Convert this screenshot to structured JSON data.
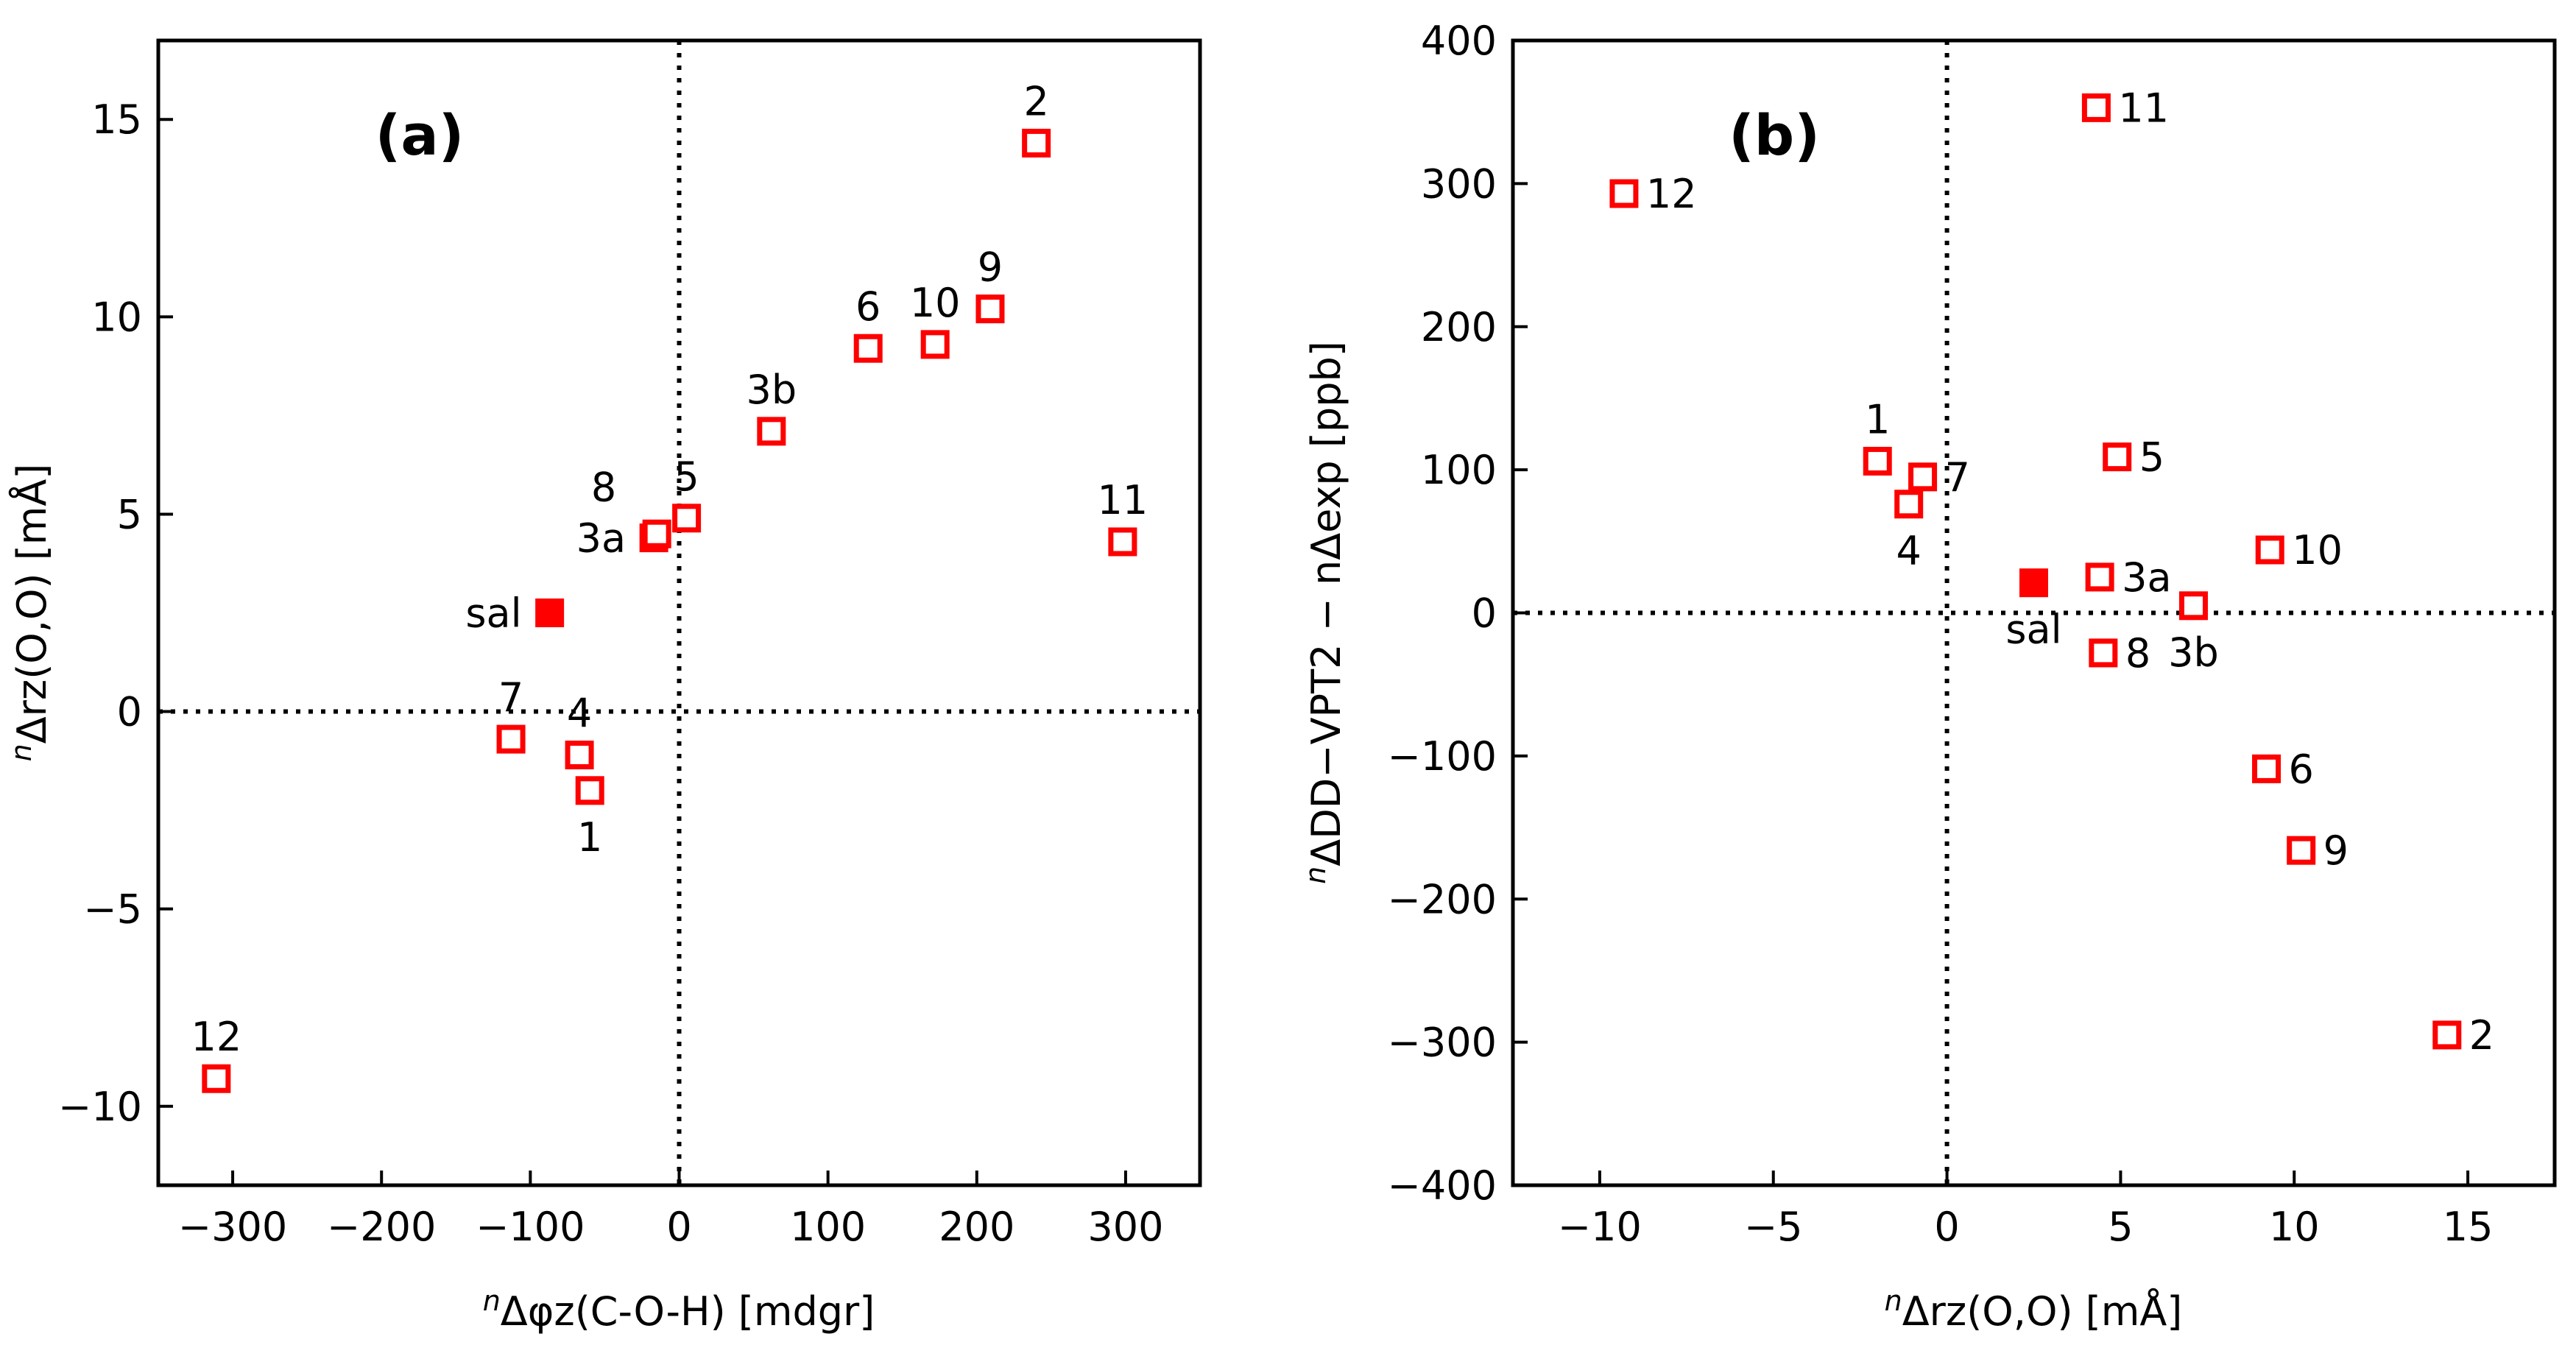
{
  "colors": {
    "marker": "#ff0000",
    "axis": "#000000",
    "background": "#ffffff"
  },
  "chart_data": [
    {
      "type": "scatter",
      "panel_label": "(a)",
      "xlabel": {
        "prefix": "n",
        "text": "Δφz(C-O-H) [mdgr]"
      },
      "ylabel": {
        "prefix": "n",
        "text": "Δrz(O,O) [mÅ]"
      },
      "xlim": [
        -350,
        350
      ],
      "ylim": [
        -12,
        17
      ],
      "xticks": [
        -300,
        -200,
        -100,
        0,
        100,
        200,
        300
      ],
      "xtick_labels": [
        "−300",
        "−200",
        "−100",
        "0",
        "100",
        "200",
        "300"
      ],
      "yticks": [
        -10,
        -5,
        0,
        5,
        10,
        15
      ],
      "ytick_labels": [
        "−10",
        "−5",
        "0",
        "5",
        "10",
        "15"
      ],
      "reference_lines": {
        "x": 0,
        "y": 0,
        "style": "dotted"
      },
      "points": [
        {
          "label": "1",
          "x": -60,
          "y": -2.0,
          "filled": false,
          "label_pos": "below"
        },
        {
          "label": "2",
          "x": 240,
          "y": 14.4,
          "filled": false,
          "label_pos": "above"
        },
        {
          "label": "3a",
          "x": -17,
          "y": 4.4,
          "filled": false,
          "label_pos": "left"
        },
        {
          "label": "3b",
          "x": 62,
          "y": 7.1,
          "filled": false,
          "label_pos": "above"
        },
        {
          "label": "4",
          "x": -67,
          "y": -1.1,
          "filled": false,
          "label_pos": "above"
        },
        {
          "label": "5",
          "x": 5,
          "y": 4.9,
          "filled": false,
          "label_pos": "above"
        },
        {
          "label": "6",
          "x": 127,
          "y": 9.2,
          "filled": false,
          "label_pos": "above"
        },
        {
          "label": "7",
          "x": -113,
          "y": -0.7,
          "filled": false,
          "label_pos": "above"
        },
        {
          "label": "8",
          "x": -15,
          "y": 4.5,
          "filled": false,
          "label_pos": "upper-left"
        },
        {
          "label": "9",
          "x": 209,
          "y": 10.2,
          "filled": false,
          "label_pos": "above"
        },
        {
          "label": "10",
          "x": 172,
          "y": 9.3,
          "filled": false,
          "label_pos": "above"
        },
        {
          "label": "11",
          "x": 298,
          "y": 4.3,
          "filled": false,
          "label_pos": "above"
        },
        {
          "label": "12",
          "x": -311,
          "y": -9.3,
          "filled": false,
          "label_pos": "above"
        },
        {
          "label": "sal",
          "x": -87,
          "y": 2.5,
          "filled": true,
          "label_pos": "left"
        }
      ]
    },
    {
      "type": "scatter",
      "panel_label": "(b)",
      "xlabel": {
        "prefix": "n",
        "text": "Δrz(O,O) [mÅ]"
      },
      "ylabel": {
        "prefix": "n",
        "text": "ΔDD−VPT2 − nΔexp [ppb]"
      },
      "xlim": [
        -12.5,
        17.5
      ],
      "ylim": [
        -400,
        400
      ],
      "xticks": [
        -10,
        -5,
        0,
        5,
        10,
        15
      ],
      "xtick_labels": [
        "−10",
        "−5",
        "0",
        "5",
        "10",
        "15"
      ],
      "yticks": [
        -400,
        -300,
        -200,
        -100,
        0,
        100,
        200,
        300,
        400
      ],
      "ytick_labels": [
        "−400",
        "−300",
        "−200",
        "−100",
        "0",
        "100",
        "200",
        "300",
        "400"
      ],
      "reference_lines": {
        "x": 0,
        "y": 0,
        "style": "dotted"
      },
      "points": [
        {
          "label": "1",
          "x": -2.0,
          "y": 106,
          "filled": false,
          "label_pos": "above"
        },
        {
          "label": "2",
          "x": 14.4,
          "y": -295,
          "filled": false,
          "label_pos": "right"
        },
        {
          "label": "3a",
          "x": 4.4,
          "y": 25,
          "filled": false,
          "label_pos": "right"
        },
        {
          "label": "3b",
          "x": 7.1,
          "y": 5,
          "filled": false,
          "label_pos": "below"
        },
        {
          "label": "4",
          "x": -1.1,
          "y": 76,
          "filled": false,
          "label_pos": "below"
        },
        {
          "label": "5",
          "x": 4.9,
          "y": 109,
          "filled": false,
          "label_pos": "right"
        },
        {
          "label": "6",
          "x": 9.2,
          "y": -109,
          "filled": false,
          "label_pos": "right"
        },
        {
          "label": "7",
          "x": -0.7,
          "y": 95,
          "filled": false,
          "label_pos": "right"
        },
        {
          "label": "8",
          "x": 4.5,
          "y": -28,
          "filled": false,
          "label_pos": "right"
        },
        {
          "label": "9",
          "x": 10.2,
          "y": -166,
          "filled": false,
          "label_pos": "right"
        },
        {
          "label": "10",
          "x": 9.3,
          "y": 44,
          "filled": false,
          "label_pos": "right"
        },
        {
          "label": "11",
          "x": 4.3,
          "y": 353,
          "filled": false,
          "label_pos": "right"
        },
        {
          "label": "12",
          "x": -9.3,
          "y": 293,
          "filled": false,
          "label_pos": "right"
        },
        {
          "label": "sal",
          "x": 2.5,
          "y": 21,
          "filled": true,
          "label_pos": "below"
        }
      ]
    }
  ]
}
